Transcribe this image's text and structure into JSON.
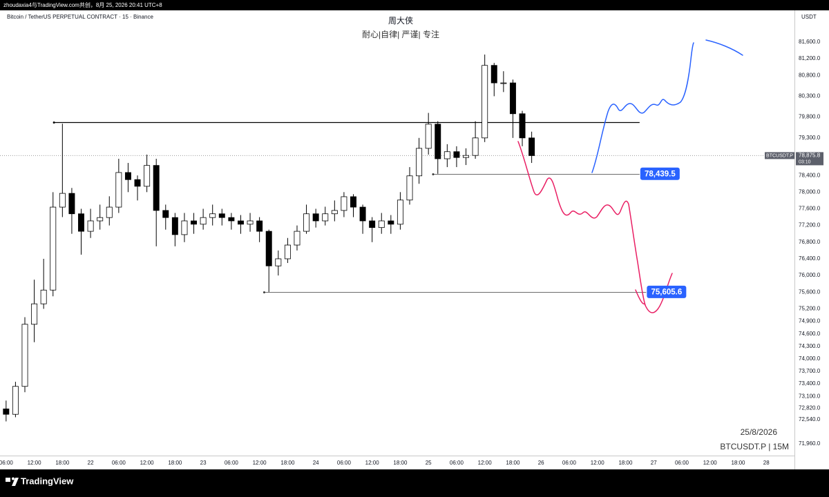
{
  "header": {
    "text": "zhoudaxia4与TradingView.com共创，8月 25, 2026 20:41 UTC+8"
  },
  "footer": {
    "brand": "TradingView"
  },
  "chart_data": {
    "type": "candlestick",
    "title": "周大侠",
    "subtitle": "耐心|自律| 严谨| 专注",
    "symbol_description": "Bitcoin / TetherUS PERPETUAL CONTRACT · 15 · Binance",
    "currency": "USDT",
    "watermark": [
      "25/8/2026",
      "BTCUSDT.P | 15M"
    ],
    "up_color": "#ffffff",
    "down_color": "#000000",
    "x": [
      6,
      8,
      10,
      12,
      14,
      16,
      18,
      20,
      22,
      24,
      26,
      28,
      30,
      32,
      34,
      36,
      38,
      40,
      42,
      44,
      46,
      48,
      50,
      52,
      54,
      56,
      58,
      60,
      62,
      64,
      66,
      68,
      70,
      72,
      74,
      76,
      78,
      80,
      82,
      84,
      86,
      88,
      90,
      92,
      94,
      96,
      98,
      100,
      102,
      104,
      106,
      108,
      110,
      112,
      114,
      116,
      118
    ],
    "open": [
      72800,
      72670,
      73340,
      74830,
      75320,
      75650,
      77640,
      77970,
      77480,
      77060,
      77310,
      77390,
      77640,
      78470,
      78300,
      78140,
      78640,
      77560,
      77390,
      76980,
      77310,
      77230,
      77390,
      77480,
      77390,
      77310,
      77230,
      77310,
      77060,
      76230,
      76400,
      76730,
      77060,
      77480,
      77310,
      77480,
      77560,
      77890,
      77640,
      77310,
      77150,
      77310,
      77230,
      77810,
      78390,
      79050,
      79630,
      78800,
      78970,
      78830,
      78880,
      79300,
      81040,
      80620,
      80620,
      79880,
      79300
    ],
    "high": [
      73000,
      73450,
      75000,
      75900,
      76400,
      78000,
      79640,
      78100,
      77600,
      77600,
      77700,
      77900,
      78800,
      78700,
      78400,
      78900,
      78800,
      77700,
      77500,
      77500,
      77500,
      77600,
      77700,
      77600,
      77500,
      77450,
      77500,
      77400,
      77100,
      76600,
      76900,
      77200,
      77700,
      77600,
      77650,
      77800,
      78000,
      77950,
      77700,
      77400,
      77500,
      77450,
      78000,
      78600,
      79300,
      79900,
      79700,
      79150,
      79100,
      79050,
      79700,
      81300,
      81100,
      80900,
      80700,
      79950,
      79450
    ],
    "low": [
      72500,
      72600,
      73200,
      74400,
      75200,
      75500,
      77400,
      77000,
      76500,
      76900,
      77100,
      77200,
      77500,
      78000,
      77800,
      78000,
      76700,
      77100,
      76700,
      76800,
      77000,
      77100,
      77200,
      77200,
      77100,
      77000,
      77050,
      76800,
      75605.6,
      76000,
      76300,
      76600,
      77000,
      77150,
      77200,
      77300,
      77400,
      77400,
      77000,
      76800,
      77000,
      77000,
      77100,
      77700,
      78200,
      78900,
      78439.5,
      78600,
      78600,
      78650,
      78800,
      79200,
      80300,
      80400,
      79300,
      79100,
      78700
    ],
    "close": [
      72670,
      73340,
      74830,
      75320,
      75650,
      77640,
      77970,
      77480,
      77060,
      77310,
      77390,
      77640,
      78470,
      78300,
      78140,
      78640,
      77560,
      77390,
      76980,
      77310,
      77230,
      77390,
      77480,
      77390,
      77310,
      77230,
      77310,
      77060,
      76230,
      76400,
      76730,
      77060,
      77480,
      77310,
      77480,
      77560,
      77890,
      77640,
      77310,
      77150,
      77310,
      77230,
      77810,
      78390,
      79050,
      79630,
      78800,
      78970,
      78830,
      78880,
      79300,
      81040,
      80620,
      80620,
      79880,
      79300,
      78875.8
    ],
    "xlim": [
      4.7,
      174
    ],
    "xticks": [
      {
        "value": 6,
        "label": "06:00"
      },
      {
        "value": 12,
        "label": "12:00"
      },
      {
        "value": 18,
        "label": "18:00"
      },
      {
        "value": 24,
        "label": "22"
      },
      {
        "value": 30,
        "label": "06:00"
      },
      {
        "value": 36,
        "label": "12:00"
      },
      {
        "value": 42,
        "label": "18:00"
      },
      {
        "value": 48,
        "label": "23"
      },
      {
        "value": 54,
        "label": "06:00"
      },
      {
        "value": 60,
        "label": "12:00"
      },
      {
        "value": 66,
        "label": "18:00"
      },
      {
        "value": 72,
        "label": "24"
      },
      {
        "value": 78,
        "label": "06:00"
      },
      {
        "value": 84,
        "label": "12:00"
      },
      {
        "value": 90,
        "label": "18:00"
      },
      {
        "value": 96,
        "label": "25"
      },
      {
        "value": 102,
        "label": "06:00"
      },
      {
        "value": 108,
        "label": "12:00"
      },
      {
        "value": 114,
        "label": "18:00"
      },
      {
        "value": 120,
        "label": "26"
      },
      {
        "value": 126,
        "label": "06:00"
      },
      {
        "value": 132,
        "label": "12:00"
      },
      {
        "value": 138,
        "label": "18:00"
      },
      {
        "value": 144,
        "label": "27"
      },
      {
        "value": 150,
        "label": "06:00"
      },
      {
        "value": 156,
        "label": "12:00"
      },
      {
        "value": 162,
        "label": "18:00"
      },
      {
        "value": 168,
        "label": "28"
      }
    ],
    "ylim": [
      71680,
      82360
    ],
    "yticks": [
      {
        "value": 81600,
        "label": "81,600.0"
      },
      {
        "value": 81200,
        "label": "81,200.0"
      },
      {
        "value": 80800,
        "label": "80,800.0"
      },
      {
        "value": 80300,
        "label": "80,300.0"
      },
      {
        "value": 79800,
        "label": "79,800.0"
      },
      {
        "value": 79300,
        "label": "79,300.0"
      },
      {
        "value": 78400,
        "label": "78,400.0"
      },
      {
        "value": 78000,
        "label": "78,000.0"
      },
      {
        "value": 77600,
        "label": "77,600.0"
      },
      {
        "value": 77200,
        "label": "77,200.0"
      },
      {
        "value": 76800,
        "label": "76,800.0"
      },
      {
        "value": 76400,
        "label": "76,400.0"
      },
      {
        "value": 76000,
        "label": "76,000.0"
      },
      {
        "value": 75600,
        "label": "75,600.0"
      },
      {
        "value": 75200,
        "label": "75,200.0"
      },
      {
        "value": 74900,
        "label": "74,900.0"
      },
      {
        "value": 74600,
        "label": "74,600.0"
      },
      {
        "value": 74300,
        "label": "74,300.0"
      },
      {
        "value": 74000,
        "label": "74,000.0"
      },
      {
        "value": 73700,
        "label": "73,700.0"
      },
      {
        "value": 73400,
        "label": "73,400.0"
      },
      {
        "value": 73100,
        "label": "73,100.0"
      },
      {
        "value": 72820,
        "label": "72,820.0"
      },
      {
        "value": 72540,
        "label": "72,540.0"
      },
      {
        "value": 71960,
        "label": "71,960.0"
      }
    ],
    "hlines": [
      {
        "value": 79680,
        "start": 16.2,
        "end": 141,
        "color": "#000000"
      },
      {
        "value": 78439.5,
        "label": "78,439.5",
        "start": 97,
        "end": 141,
        "color": "#3a3a3a",
        "label_color": "#2962ff"
      },
      {
        "value": 75605.6,
        "label": "75,605.6",
        "start": 61,
        "end": 142.4,
        "color": "#3a3a3a",
        "label_color": "#2962ff"
      }
    ],
    "last_price": {
      "symbol": "BTCUSDT.P",
      "value": 78875.8,
      "label": "78,875.8",
      "countdown": "03:10"
    }
  }
}
